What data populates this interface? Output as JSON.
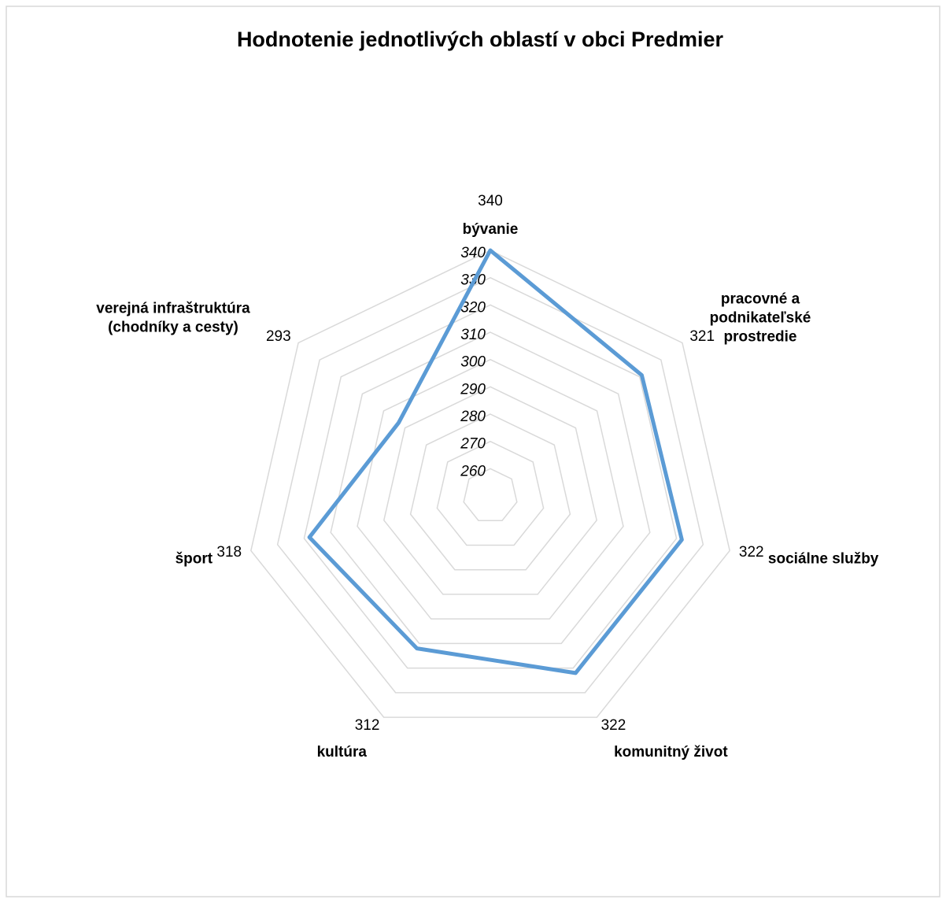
{
  "chart_data": {
    "type": "radar",
    "title": "Hodnotenie jednotlivých oblastí v obci Predmier",
    "categories": [
      "bývanie",
      "pracovné a podnikateľské prostredie",
      "sociálne služby",
      "komunitný život",
      "kultúra",
      "šport",
      "verejná infraštruktúra (chodníky a cesty)"
    ],
    "series": [
      {
        "name": "Hodnotenie",
        "color": "#5b9bd5",
        "values": [
          340,
          321,
          322,
          322,
          312,
          318,
          293
        ]
      }
    ],
    "ylim": [
      250,
      340
    ],
    "yticks": [
      260,
      270,
      280,
      290,
      300,
      310,
      320,
      330,
      340
    ],
    "grid": true
  }
}
